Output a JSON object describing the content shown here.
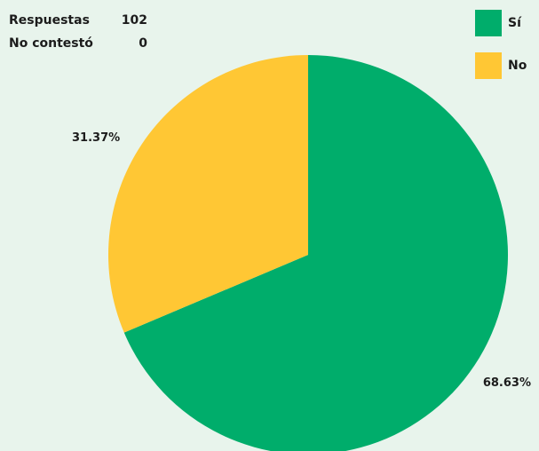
{
  "stats": {
    "responses_label": "Respuestas",
    "responses_value": "102",
    "no_answer_label": "No contestó",
    "no_answer_value": "0"
  },
  "chart_data": {
    "type": "pie",
    "categories": [
      "Sí",
      "No"
    ],
    "values": [
      68.63,
      31.37
    ],
    "labels": [
      "68.63%",
      "31.37%"
    ],
    "colors": [
      "#00ad6b",
      "#ffc734"
    ],
    "legend_position": "top-right"
  }
}
